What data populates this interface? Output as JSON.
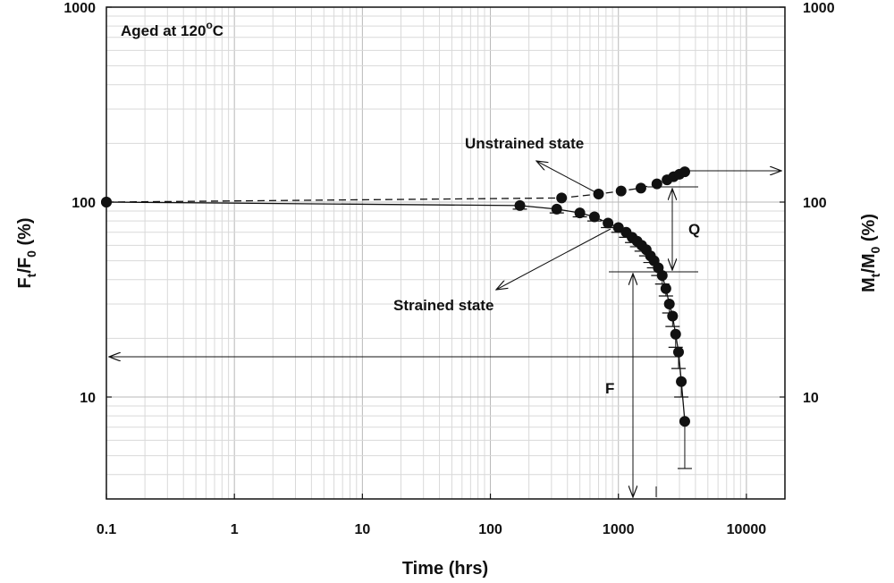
{
  "chart_data": {
    "type": "scatter",
    "title": "",
    "xlabel": "Time (hrs)",
    "ylabel_left": {
      "main": "F",
      "sub1": "t",
      "mid": "/F",
      "sub2": "0",
      "unit": " (%)"
    },
    "ylabel_right": {
      "main": "M",
      "sub1": "t",
      "mid": "/M",
      "sub2": "0",
      "unit": " (%)"
    },
    "x_scale": "log",
    "y_scale": "log",
    "xlim": [
      0.1,
      20000
    ],
    "ylim": [
      3,
      1000
    ],
    "x_ticks": [
      0.1,
      1,
      10,
      100,
      1000,
      10000
    ],
    "x_tick_labels": [
      "0.1",
      "1",
      "10",
      "100",
      "1000",
      "10000"
    ],
    "y_ticks": [
      10,
      100,
      1000
    ],
    "y_tick_labels": [
      "10",
      "100",
      "1000"
    ],
    "grid": true,
    "annotation_box": {
      "prefix": "Aged at 120",
      "sup": "o",
      "suffix": "C"
    },
    "series": [
      {
        "name": "Unstrained state",
        "line_style": "dashed",
        "x": [
          0.1,
          360,
          700,
          1050,
          1500,
          2000,
          2400,
          2700,
          3000,
          3300
        ],
        "y": [
          100,
          105,
          110,
          114,
          118,
          124,
          130,
          135,
          139,
          143
        ]
      },
      {
        "name": "Strained state",
        "line_style": "solid",
        "x": [
          0.1,
          170,
          330,
          500,
          650,
          830,
          1000,
          1150,
          1280,
          1400,
          1520,
          1650,
          1780,
          1900,
          2050,
          2200,
          2350,
          2500,
          2650,
          2800,
          2950,
          3100,
          3300
        ],
        "y": [
          100,
          96,
          92,
          88,
          84,
          78,
          74,
          70,
          66,
          63,
          60,
          57,
          53,
          50,
          46,
          42,
          36,
          30,
          26,
          21,
          17,
          12,
          7.5
        ],
        "error": [
          0,
          4,
          4,
          4,
          4,
          4,
          4,
          4,
          4,
          4,
          4,
          4,
          4,
          4,
          4,
          4,
          3,
          3,
          3,
          3,
          3,
          2,
          3
        ]
      }
    ],
    "annotations": {
      "unstrained": "Unstrained state",
      "strained": "Strained state",
      "q": "Q",
      "f": "F"
    }
  }
}
